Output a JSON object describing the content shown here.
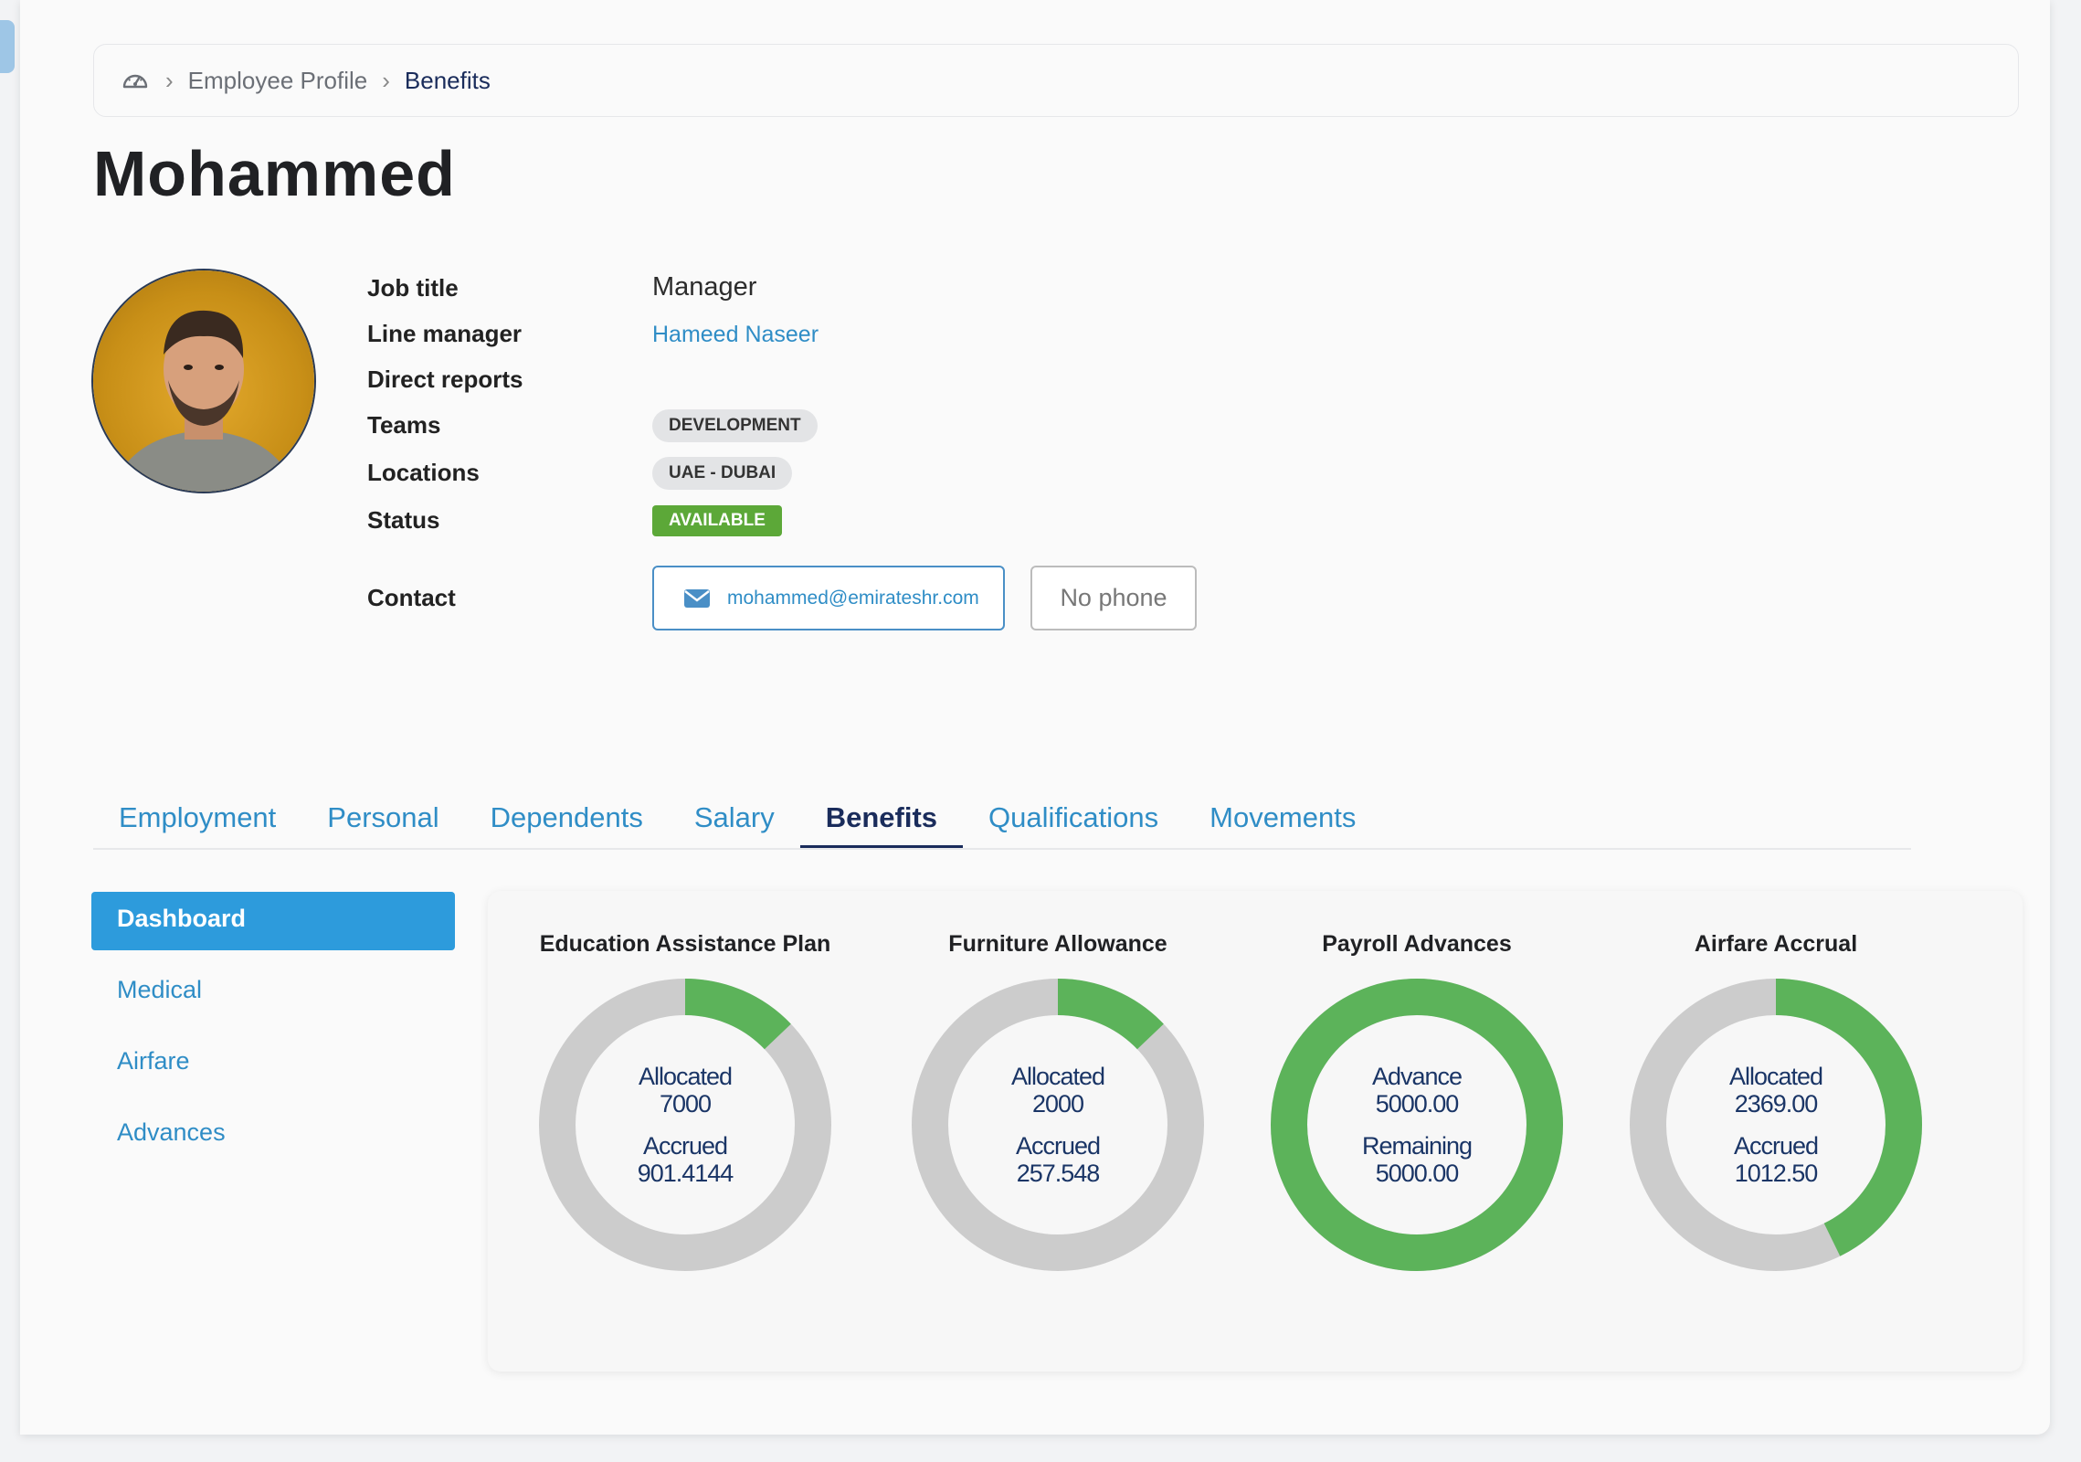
{
  "breadcrumb": {
    "home_icon": "dashboard-gauge-icon",
    "items": [
      "Employee Profile",
      "Benefits"
    ]
  },
  "employee": {
    "name": "Mohammed",
    "labels": {
      "job_title": "Job title",
      "line_manager": "Line manager",
      "direct_reports": "Direct reports",
      "teams": "Teams",
      "locations": "Locations",
      "status": "Status",
      "contact": "Contact"
    },
    "job_title": "Manager",
    "line_manager": "Hameed Naseer",
    "team": "DEVELOPMENT",
    "location": "UAE - DUBAI",
    "status": "AVAILABLE",
    "email": "mohammed@emirateshr.com",
    "phone": "No phone"
  },
  "tabs": [
    {
      "label": "Employment",
      "active": false
    },
    {
      "label": "Personal",
      "active": false
    },
    {
      "label": "Dependents",
      "active": false
    },
    {
      "label": "Salary",
      "active": false
    },
    {
      "label": "Benefits",
      "active": true
    },
    {
      "label": "Qualifications",
      "active": false
    },
    {
      "label": "Movements",
      "active": false
    }
  ],
  "sidebar": {
    "items": [
      "Dashboard",
      "Medical",
      "Airfare",
      "Advances"
    ],
    "active": "Dashboard"
  },
  "colors": {
    "accent": "#2d9bdc",
    "link": "#2f8dc6",
    "navy": "#1a2c5b",
    "donut_filled": "#5cb35a",
    "donut_track": "#cccccc",
    "status_green": "#5ca838"
  },
  "benefit_cards": [
    {
      "title": "Education Assistance Plan",
      "fill_fraction": 0.1288,
      "line1_label": "Allocated",
      "line1_value": "7000",
      "line2_label": "Accrued",
      "line2_value": "901.4144"
    },
    {
      "title": "Furniture Allowance",
      "fill_fraction": 0.1288,
      "line1_label": "Allocated",
      "line1_value": "2000",
      "line2_label": "Accrued",
      "line2_value": "257.548"
    },
    {
      "title": "Payroll Advances",
      "fill_fraction": 1.0,
      "line1_label": "Advance",
      "line1_value": "5000.00",
      "line2_label": "Remaining",
      "line2_value": "5000.00"
    },
    {
      "title": "Airfare Accrual",
      "fill_fraction": 0.4274,
      "line1_label": "Allocated",
      "line1_value": "2369.00",
      "line2_label": "Accrued",
      "line2_value": "1012.50"
    }
  ]
}
